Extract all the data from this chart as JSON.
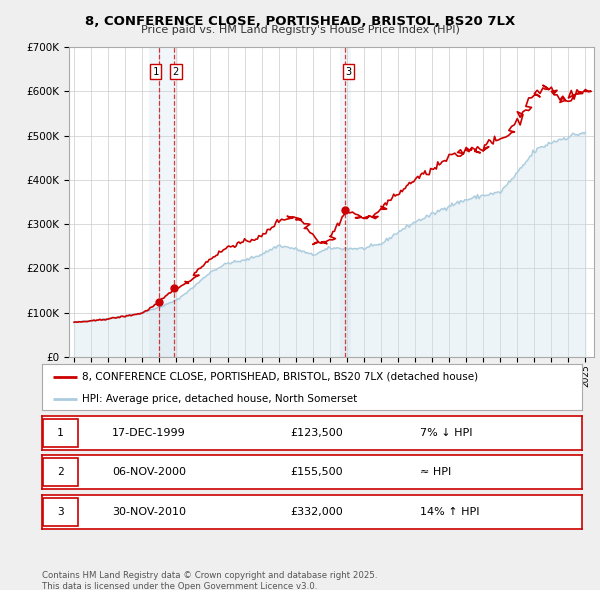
{
  "title": "8, CONFERENCE CLOSE, PORTISHEAD, BRISTOL, BS20 7LX",
  "subtitle": "Price paid vs. HM Land Registry's House Price Index (HPI)",
  "ylim": [
    0,
    700000
  ],
  "yticks": [
    0,
    100000,
    200000,
    300000,
    400000,
    500000,
    600000,
    700000
  ],
  "xlim_start": 1994.7,
  "xlim_end": 2025.5,
  "bg_color": "#efefef",
  "plot_bg_color": "#ffffff",
  "grid_color": "#cccccc",
  "red_color": "#cc0000",
  "blue_color": "#aaccdd",
  "blue_fill_color": "#cce0ec",
  "legend_label_red": "8, CONFERENCE CLOSE, PORTISHEAD, BRISTOL, BS20 7LX (detached house)",
  "legend_label_blue": "HPI: Average price, detached house, North Somerset",
  "transactions": [
    {
      "num": 1,
      "date": "17-DEC-1999",
      "year": 1999.96,
      "price": 123500,
      "note": "7% ↓ HPI"
    },
    {
      "num": 2,
      "date": "06-NOV-2000",
      "year": 2000.85,
      "price": 155500,
      "note": "≈ HPI"
    },
    {
      "num": 3,
      "date": "30-NOV-2010",
      "year": 2010.92,
      "price": 332000,
      "note": "14% ↑ HPI"
    }
  ],
  "footer_text": "Contains HM Land Registry data © Crown copyright and database right 2025.\nThis data is licensed under the Open Government Licence v3.0."
}
